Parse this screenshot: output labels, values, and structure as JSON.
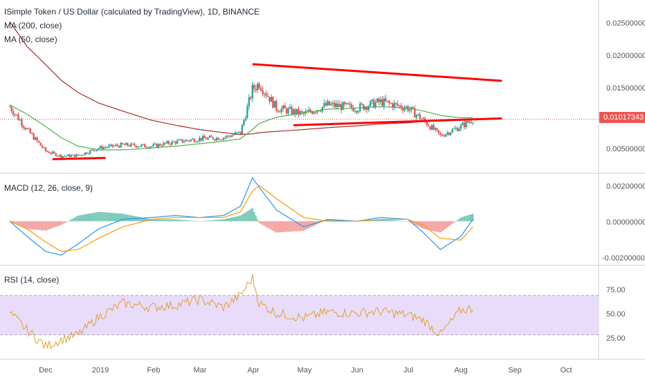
{
  "header": {
    "title": "ISimple Token / US Dollar (calculated by TradingView), 1D, BINANCE",
    "ma200_label": "MA (200, close)",
    "ma50_label": "MA (50, close)",
    "macd_label": "MACD (12, 26, close, 9)",
    "rsi_label": "RSI (14, close)"
  },
  "price_axis": {
    "ticks": [
      "0.02500000",
      "0.02000000",
      "0.01500000",
      "0.00500000"
    ],
    "current_price": "0.01017343"
  },
  "macd_axis": {
    "ticks": [
      "0.00200000",
      "0.00000000",
      "-0.00200000"
    ]
  },
  "rsi_axis": {
    "ticks": [
      "75.00",
      "50.00",
      "25.00"
    ]
  },
  "time_axis": {
    "ticks": [
      "Dec",
      "2019",
      "Feb",
      "Mar",
      "Apr",
      "May",
      "Jun",
      "Jul",
      "Aug",
      "Sep",
      "Oct"
    ]
  },
  "colors": {
    "up": "#26a69a",
    "down": "#ef5350",
    "ma200": "#a52a2a",
    "ma50": "#4caf50",
    "macd": "#2196f3",
    "signal": "#ff9800",
    "rsi": "#e0a030",
    "rsi_band": "#e9dcfb",
    "trendline": "#ff0000"
  },
  "chart_data": [
    {
      "type": "candlestick",
      "title": "ISimple Token / US Dollar (calculated by TradingView), 1D, BINANCE",
      "x": [
        "2018-11-10",
        "2018-11-20",
        "2018-12-01",
        "2018-12-10",
        "2018-12-20",
        "2019-01-01",
        "2019-01-15",
        "2019-02-01",
        "2019-02-15",
        "2019-03-01",
        "2019-03-15",
        "2019-03-25",
        "2019-04-01",
        "2019-04-05",
        "2019-04-15",
        "2019-05-01",
        "2019-05-15",
        "2019-06-01",
        "2019-06-15",
        "2019-07-01",
        "2019-07-10",
        "2019-07-20",
        "2019-08-01",
        "2019-08-08"
      ],
      "close": [
        0.0122,
        0.0085,
        0.005,
        0.0042,
        0.0043,
        0.0055,
        0.006,
        0.0058,
        0.0065,
        0.007,
        0.0072,
        0.008,
        0.015,
        0.016,
        0.012,
        0.011,
        0.0125,
        0.012,
        0.013,
        0.012,
        0.01,
        0.0075,
        0.009,
        0.0102
      ],
      "ma200": [
        0.026,
        0.022,
        0.019,
        0.0165,
        0.0145,
        0.0128,
        0.0115,
        0.01,
        0.0092,
        0.0085,
        0.008,
        0.0077,
        0.0078,
        0.008,
        0.0082,
        0.0085,
        0.0088,
        0.0091,
        0.0094,
        0.0096,
        0.0098,
        0.01,
        0.0101,
        0.0102
      ],
      "ma50": [
        0.0125,
        0.011,
        0.009,
        0.0072,
        0.0058,
        0.0052,
        0.0052,
        0.0055,
        0.0058,
        0.0062,
        0.0066,
        0.007,
        0.0085,
        0.0095,
        0.0105,
        0.0112,
        0.0118,
        0.012,
        0.0122,
        0.012,
        0.0115,
        0.0108,
        0.0104,
        0.0104
      ],
      "current_price": 0.01017343,
      "ylim": [
        0.0015,
        0.0295
      ]
    },
    {
      "type": "line",
      "title": "MACD (12, 26, close, 9)",
      "x": [
        "2018-11-10",
        "2018-11-20",
        "2018-12-01",
        "2018-12-10",
        "2018-12-20",
        "2019-01-01",
        "2019-01-15",
        "2019-02-01",
        "2019-02-15",
        "2019-03-01",
        "2019-03-15",
        "2019-03-25",
        "2019-04-01",
        "2019-04-05",
        "2019-04-15",
        "2019-05-01",
        "2019-05-15",
        "2019-06-01",
        "2019-06-15",
        "2019-07-01",
        "2019-07-10",
        "2019-07-20",
        "2019-08-01",
        "2019-08-08"
      ],
      "series": [
        {
          "values": [
            0.0,
            -0.0008,
            -0.0016,
            -0.0018,
            -0.0012,
            -0.0004,
            0.0001,
            0.0002,
            0.0003,
            0.0002,
            0.0003,
            0.0008,
            0.0023,
            0.0018,
            0.0006,
            -0.0003,
            0.0001,
            0.0,
            0.0002,
            0.0001,
            -0.0006,
            -0.0015,
            -0.0008,
            0.0001
          ]
        },
        {
          "values": [
            0.0,
            -0.0004,
            -0.0011,
            -0.0016,
            -0.0015,
            -0.0009,
            -0.0003,
            0.0001,
            0.0002,
            0.0002,
            0.0002,
            0.0005,
            0.0016,
            0.0019,
            0.0012,
            0.0002,
            0.0,
            0.0,
            0.0001,
            0.0001,
            -0.0002,
            -0.0009,
            -0.001,
            -0.0003
          ]
        }
      ],
      "ylim": [
        -0.0023,
        0.0025
      ]
    },
    {
      "type": "line",
      "title": "RSI (14, close)",
      "x": [
        "2018-11-10",
        "2018-11-20",
        "2018-12-01",
        "2018-12-10",
        "2018-12-20",
        "2019-01-01",
        "2019-01-15",
        "2019-02-01",
        "2019-02-15",
        "2019-03-01",
        "2019-03-15",
        "2019-03-25",
        "2019-04-01",
        "2019-04-05",
        "2019-04-15",
        "2019-05-01",
        "2019-05-15",
        "2019-06-01",
        "2019-06-15",
        "2019-07-01",
        "2019-07-10",
        "2019-07-20",
        "2019-08-01",
        "2019-08-08"
      ],
      "values": [
        52,
        35,
        18,
        25,
        30,
        48,
        62,
        58,
        60,
        66,
        58,
        70,
        88,
        62,
        52,
        47,
        53,
        52,
        54,
        50,
        45,
        30,
        55,
        57
      ],
      "band": [
        30,
        70
      ],
      "ylim": [
        5,
        100
      ]
    }
  ]
}
